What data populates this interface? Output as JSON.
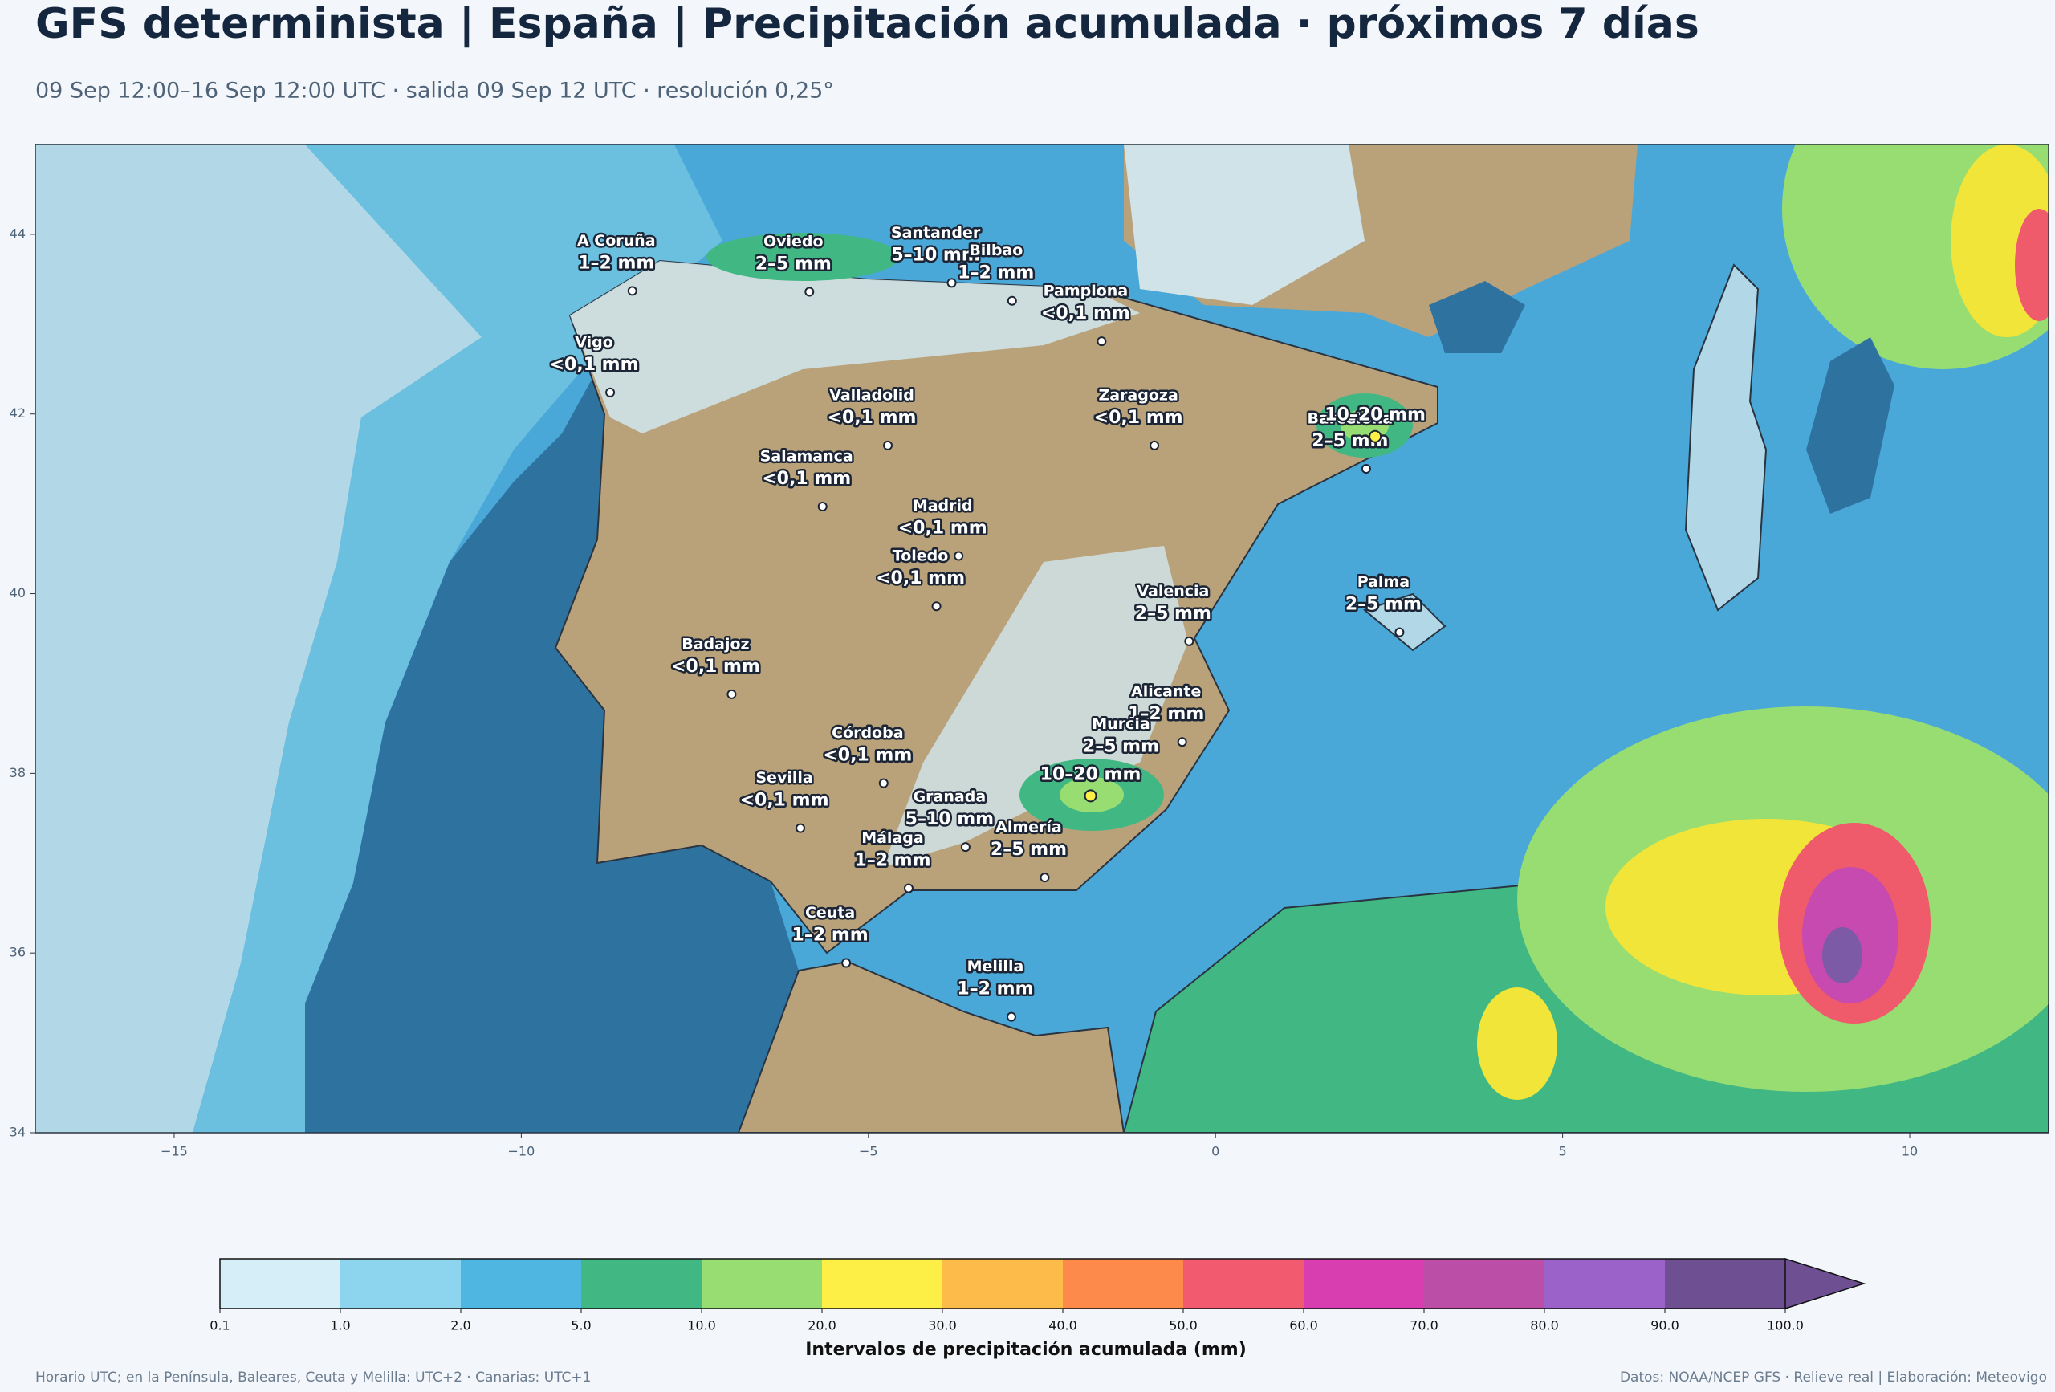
{
  "title": "GFS determinista | España | Precipitación acumulada · próximos 7 días",
  "subtitle": "09 Sep 12:00–16 Sep 12:00 UTC · salida 09 Sep 12 UTC · resolución 0,25°",
  "map": {
    "xlim": [
      -17,
      12
    ],
    "ylim": [
      34,
      45
    ],
    "xticks": [
      {
        "value": -15,
        "label": "−15"
      },
      {
        "value": -10,
        "label": "−10"
      },
      {
        "value": -5,
        "label": "−5"
      },
      0,
      5,
      10
    ],
    "yticks": [
      34,
      36,
      38,
      40,
      42,
      44
    ],
    "cities": [
      {
        "name": "A Coruña",
        "label": "1–2 mm",
        "lon": -8.4,
        "lat": 43.37
      },
      {
        "name": "Oviedo",
        "label": "2–5 mm",
        "lon": -5.85,
        "lat": 43.36
      },
      {
        "name": "Santander",
        "label": "5–10 mm",
        "lon": -3.8,
        "lat": 43.46
      },
      {
        "name": "Pamplona",
        "label": "<0,1 mm",
        "lon": -1.64,
        "lat": 42.81
      },
      {
        "name": "Bilbao",
        "label": "1–2 mm",
        "lon": -2.93,
        "lat": 43.26
      },
      {
        "name": "Valladolid",
        "label": "<0,1 mm",
        "lon": -4.72,
        "lat": 41.65
      },
      {
        "name": "Zaragoza",
        "label": "<0,1 mm",
        "lon": -0.88,
        "lat": 41.65
      },
      {
        "name": "Vigo",
        "label": "<0,1 mm",
        "lon": -8.72,
        "lat": 42.24
      },
      {
        "name": "Barcelona",
        "label": "2–5 mm",
        "lon": 2.17,
        "lat": 41.39
      },
      {
        "name": "Salamanca",
        "label": "<0,1 mm",
        "lon": -5.66,
        "lat": 40.97
      },
      {
        "name": "Madrid",
        "label": "<0,1 mm",
        "lon": -3.7,
        "lat": 40.42
      },
      {
        "name": "Valencia",
        "label": "2–5 mm",
        "lon": -0.38,
        "lat": 39.47
      },
      {
        "name": "Toledo",
        "label": "<0,1 mm",
        "lon": -4.02,
        "lat": 39.86
      },
      {
        "name": "Badajoz",
        "label": "<0,1 mm",
        "lon": -6.97,
        "lat": 38.88
      },
      {
        "name": "Palma",
        "label": "2–5 mm",
        "lon": 2.65,
        "lat": 39.57
      },
      {
        "name": "Córdoba",
        "label": "<0,1 mm",
        "lon": -4.78,
        "lat": 37.89
      },
      {
        "name": "Alicante",
        "label": "1–2 mm",
        "lon": -0.48,
        "lat": 38.35
      },
      {
        "name": "Murcia",
        "label": "2–5 mm",
        "lon": -1.13,
        "lat": 37.99
      },
      {
        "name": "Granada",
        "label": "5–10 mm",
        "lon": -3.6,
        "lat": 37.18
      },
      {
        "name": "Sevilla",
        "label": "<0,1 mm",
        "lon": -5.98,
        "lat": 37.39
      },
      {
        "name": "Málaga",
        "label": "1–2 mm",
        "lon": -4.42,
        "lat": 36.72
      },
      {
        "name": "Almería",
        "label": "2–5 mm",
        "lon": -2.46,
        "lat": 36.84
      },
      {
        "name": "Ceuta",
        "label": "1–2 mm",
        "lon": -5.32,
        "lat": 35.89
      },
      {
        "name": "Melilla",
        "label": "1–2 mm",
        "lon": -2.94,
        "lat": 35.29
      }
    ],
    "maxima": [
      {
        "label": "10–20 mm",
        "lon": -1.8,
        "lat": 37.75
      },
      {
        "label": "10–20 mm",
        "lon": 2.3,
        "lat": 41.75
      }
    ]
  },
  "colorbar": {
    "label": "Intervalos de precipitación acumulada (mm)",
    "boundaries": [
      0.1,
      {
        "value": 1,
        "label": "1.0"
      },
      {
        "value": 2,
        "label": "2.0"
      },
      {
        "value": 5,
        "label": "5.0"
      },
      {
        "value": 10,
        "label": "10.0"
      },
      {
        "value": 20,
        "label": "20.0"
      },
      {
        "value": 30,
        "label": "30.0"
      },
      {
        "value": 40,
        "label": "40.0"
      },
      {
        "value": 50,
        "label": "50.0"
      },
      {
        "value": 60,
        "label": "60.0"
      },
      {
        "value": 70,
        "label": "70.0"
      },
      {
        "value": 80,
        "label": "80.0"
      },
      {
        "value": 90,
        "label": "90.0"
      },
      {
        "value": 100,
        "label": "100.0"
      }
    ],
    "colors": [
      "#d6eef7",
      "#8dd5ef",
      "#4fb6e2",
      "#41b883",
      "#98dd72",
      "#fdef45",
      "#fdbb4a",
      "#fd8a4b",
      "#f25b6f",
      "#d93eb0",
      "#bb4ea6",
      "#9b62c9",
      "#6e4f91"
    ]
  },
  "footer": {
    "left": "Horario UTC; en la Península, Baleares, Ceuta y Melilla: UTC+2 · Canarias: UTC+1",
    "right": "Datos: NOAA/NCEP GFS · Relieve real | Elaboración: Meteovigo"
  }
}
